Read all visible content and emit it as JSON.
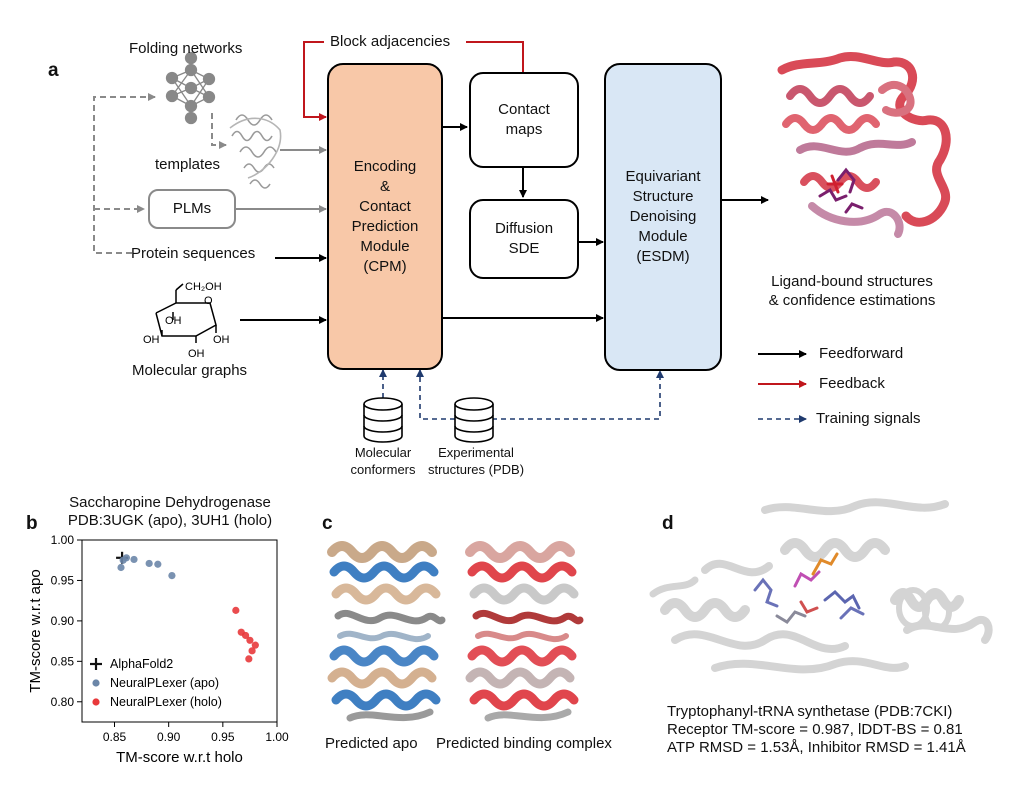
{
  "panel_a": {
    "letter": "a",
    "folding_networks": "Folding networks",
    "templates": "templates",
    "plms": "PLMs",
    "protein_sequences": "Protein sequences",
    "molecular_graphs": "Molecular graphs",
    "glucose_ch2oh": "CH₂OH",
    "glucose_oh": "OH",
    "glucose_o": "O",
    "block_adjacencies": "Block adjacencies",
    "cpm_lines": [
      "Encoding",
      "&",
      "Contact",
      "Prediction",
      "Module",
      "(CPM)"
    ],
    "contact_maps_lines": [
      "Contact",
      "maps"
    ],
    "diffusion_lines": [
      "Diffusion",
      "SDE"
    ],
    "esdm_lines": [
      "Equivariant",
      "Structure",
      "Denoising",
      "Module",
      "(ESDM)"
    ],
    "output_lines": [
      "Ligand-bound structures",
      "& confidence estimations"
    ],
    "molecular_conformers_lines": [
      "Molecular",
      "conformers"
    ],
    "experimental_lines": [
      "Experimental",
      "structures (PDB)"
    ],
    "legend": {
      "feedforward": "Feedforward",
      "feedback": "Feedback",
      "training": "Training signals"
    },
    "colors": {
      "cpm": "#f8c8a8",
      "esdm": "#d9e7f5",
      "feedback": "#c0161c",
      "training": "#1f3a6e",
      "grey": "#8a8a8a"
    }
  },
  "panel_b": {
    "letter": "b",
    "title_lines": [
      "Saccharopine Dehydrogenase",
      "PDB:3UGK (apo), 3UH1 (holo)"
    ]
  },
  "panel_c": {
    "letter": "c",
    "label_apo": "Predicted apo",
    "label_complex": "Predicted binding complex"
  },
  "panel_d": {
    "letter": "d",
    "caption_lines": [
      "Tryptophanyl-tRNA synthetase (PDB:7CKI)",
      "Receptor TM-score = 0.987, lDDT-BS = 0.81",
      "ATP RMSD = 1.53Å, Inhibitor RMSD = 1.41Å"
    ]
  },
  "chart_data": {
    "type": "scatter",
    "xlabel": "TM-score w.r.t holo",
    "ylabel": "TM-score w.r.t apo",
    "xlim": [
      0.82,
      1.0
    ],
    "ylim": [
      0.775,
      1.0
    ],
    "xticks": [
      "0.85",
      "0.90",
      "0.95",
      "1.00"
    ],
    "yticks": [
      "0.80",
      "0.85",
      "0.90",
      "0.95",
      "1.00"
    ],
    "xtick_values": [
      0.85,
      0.9,
      0.95,
      1.0
    ],
    "ytick_values": [
      0.8,
      0.85,
      0.9,
      0.95,
      1.0
    ],
    "grid": false,
    "legend_position": "bottom-left",
    "series": [
      {
        "name": "AlphaFold2",
        "marker": "plus",
        "color": "#111111",
        "points": [
          [
            0.857,
            0.978
          ]
        ]
      },
      {
        "name": "NeuralPLexer (apo)",
        "marker": "circle",
        "color": "#6b86a8",
        "points": [
          [
            0.856,
            0.966
          ],
          [
            0.858,
            0.975
          ],
          [
            0.861,
            0.978
          ],
          [
            0.868,
            0.976
          ],
          [
            0.882,
            0.971
          ],
          [
            0.89,
            0.97
          ],
          [
            0.903,
            0.956
          ]
        ]
      },
      {
        "name": "NeuralPLexer (holo)",
        "marker": "circle",
        "color": "#e8393b",
        "points": [
          [
            0.962,
            0.913
          ],
          [
            0.967,
            0.886
          ],
          [
            0.971,
            0.882
          ],
          [
            0.975,
            0.876
          ],
          [
            0.98,
            0.87
          ],
          [
            0.977,
            0.863
          ],
          [
            0.974,
            0.853
          ]
        ]
      }
    ]
  }
}
